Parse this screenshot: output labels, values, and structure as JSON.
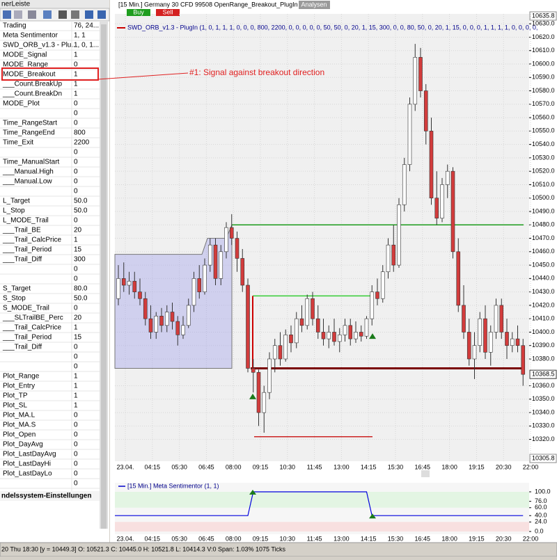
{
  "window": {
    "panel_title": "nerLeiste",
    "section": "ndelssystem-Einstellungen",
    "status": "20 Thu  18:30 [y = 10449.3]    O: 10521.3 C: 10445.0 H: 10521.8 L: 10414.3 V:0 Span: 1.03% 1075 Ticks",
    "params": [
      [
        "Trading",
        "76, 24..."
      ],
      [
        "Meta Sentimentor",
        "1, 1"
      ],
      [
        "SWD_ORB_v1.3 - Plu...",
        "1, 0, 1..."
      ],
      [
        "MODE_Signal",
        "1"
      ],
      [
        "MODE_Range",
        "0"
      ],
      [
        "MODE_Breakout",
        "1"
      ],
      [
        "___Count.BreakUp",
        "1"
      ],
      [
        "___Count.BreakDn",
        "1"
      ],
      [
        "MODE_Plot",
        "0"
      ],
      [
        null,
        "0"
      ],
      [
        "Time_RangeStart",
        "0"
      ],
      [
        "Time_RangeEnd",
        "800"
      ],
      [
        "Time_Exit",
        "2200"
      ],
      [
        null,
        "0"
      ],
      [
        "Time_ManualStart",
        "0"
      ],
      [
        "___Manual.High",
        "0"
      ],
      [
        "___Manual.Low",
        "0"
      ],
      [
        null,
        "0"
      ],
      [
        "L_Target",
        "50.0"
      ],
      [
        "L_Stop",
        "50.0"
      ],
      [
        "L_MODE_Trail",
        "0"
      ],
      [
        "___Trail_BE",
        "20"
      ],
      [
        "___Trail_CalcPrice",
        "1"
      ],
      [
        "___Trail_Period",
        "15"
      ],
      [
        "___Trail_Diff",
        "300"
      ],
      [
        null,
        "0"
      ],
      [
        null,
        "0"
      ],
      [
        "S_Target",
        "80.0"
      ],
      [
        "S_Stop",
        "50.0"
      ],
      [
        "S_MODE_Trail",
        "0"
      ],
      [
        "___SLTrailBE_Perc",
        "20"
      ],
      [
        "___Trail_CalcPrice",
        "1"
      ],
      [
        "___Trail_Period",
        "15"
      ],
      [
        "___Trail_Diff",
        "0"
      ],
      [
        null,
        "0"
      ],
      [
        null,
        "0"
      ],
      [
        "Plot_Range",
        "1"
      ],
      [
        "Plot_Entry",
        "1"
      ],
      [
        "Plot_TP",
        "1"
      ],
      [
        "Plot_SL",
        "1"
      ],
      [
        "Plot_MA.L",
        "0"
      ],
      [
        "Plot_MA.S",
        "0"
      ],
      [
        "Plot_Open",
        "0"
      ],
      [
        "Plot_DayAvg",
        "0"
      ],
      [
        "Plot_LastDayAvg",
        "0"
      ],
      [
        "Plot_LastDayHi",
        "0"
      ],
      [
        "Plot_LastDayLo",
        "0"
      ],
      [
        null,
        "0"
      ]
    ]
  },
  "chart": {
    "header": "[15 Min.] Germany 30 CFD   99508 OpenRange_Breakout_PlugIn",
    "analysen": "Analysen",
    "buy": "Buy",
    "sell": "Sell",
    "indicator": "SWD_ORB_v1.3 - PlugIn  (1, 0, 1, 1, 1, 0, 0, 0, 800, 2200, 0, 0, 0, 0, 0, 50, 50, 0, 20, 1, 15, 300, 0, 0, 80, 50, 0, 20, 1, 15, 0, 0, 0, 1, 1, 1, 1, 0, 0, 0, 0,",
    "annotation": "#1: Signal against breakout direction",
    "ylim": [
      10305.8,
      10635.8
    ],
    "last": 10368.5,
    "yticks": [
      {
        "value": 10320,
        "label": "10320.0"
      },
      {
        "value": 10330,
        "label": "10330.0"
      },
      {
        "value": 10340,
        "label": "10340.0"
      },
      {
        "value": 10350,
        "label": "10350.0"
      },
      {
        "value": 10360,
        "label": "10360.0"
      },
      {
        "value": 10380,
        "label": "10380.0"
      },
      {
        "value": 10390,
        "label": "10390.0"
      },
      {
        "value": 10400,
        "label": "10400.0"
      },
      {
        "value": 10410,
        "label": "10410.0"
      },
      {
        "value": 10420,
        "label": "10420.0"
      },
      {
        "value": 10430,
        "label": "10430.0"
      },
      {
        "value": 10440,
        "label": "10440.0"
      },
      {
        "value": 10450,
        "label": "10450.0"
      },
      {
        "value": 10460,
        "label": "10460.0"
      },
      {
        "value": 10470,
        "label": "10470.0"
      },
      {
        "value": 10480,
        "label": "10480.0"
      },
      {
        "value": 10490,
        "label": "10490.0"
      },
      {
        "value": 10500,
        "label": "10500.0"
      },
      {
        "value": 10510,
        "label": "10510.0"
      },
      {
        "value": 10520,
        "label": "10520.0"
      },
      {
        "value": 10530,
        "label": "10530.0"
      },
      {
        "value": 10540,
        "label": "10540.0"
      },
      {
        "value": 10550,
        "label": "10550.0"
      },
      {
        "value": 10560,
        "label": "10560.0"
      },
      {
        "value": 10570,
        "label": "10570.0"
      },
      {
        "value": 10580,
        "label": "10580.0"
      },
      {
        "value": 10590,
        "label": "10590.0"
      },
      {
        "value": 10600,
        "label": "10600.0"
      },
      {
        "value": 10610,
        "label": "10610.0"
      },
      {
        "value": 10620,
        "label": "10620.0"
      },
      {
        "value": 10630,
        "label": "10630.0"
      }
    ],
    "time_labels": [
      "23.04.",
      "04:15",
      "05:30",
      "06:45",
      "08:00",
      "09:15",
      "10:30",
      "11:45",
      "13:00",
      "14:15",
      "15:30",
      "16:45",
      "18:00",
      "19:15",
      "20:30",
      "22:00"
    ],
    "levels": [
      {
        "value": 10480,
        "color": "#1a9a1a"
      },
      {
        "value": 10427,
        "color": "#33cc33"
      },
      {
        "value": 10373,
        "color": "#7a0000"
      },
      {
        "value": 10322,
        "color": "#cc2222"
      }
    ],
    "range_box": [
      10458,
      10373
    ],
    "candles": [
      [
        10425,
        10450,
        10420,
        10440
      ],
      [
        10440,
        10452,
        10430,
        10435
      ],
      [
        10435,
        10445,
        10428,
        10438
      ],
      [
        10438,
        10445,
        10425,
        10430
      ],
      [
        10430,
        10440,
        10420,
        10425
      ],
      [
        10425,
        10430,
        10405,
        10410
      ],
      [
        10410,
        10420,
        10395,
        10400
      ],
      [
        10400,
        10415,
        10395,
        10412
      ],
      [
        10412,
        10418,
        10400,
        10405
      ],
      [
        10405,
        10420,
        10400,
        10415
      ],
      [
        10415,
        10422,
        10402,
        10408
      ],
      [
        10408,
        10412,
        10390,
        10398
      ],
      [
        10398,
        10412,
        10395,
        10405
      ],
      [
        10405,
        10425,
        10403,
        10420
      ],
      [
        10420,
        10445,
        10415,
        10440
      ],
      [
        10440,
        10450,
        10425,
        10430
      ],
      [
        10430,
        10455,
        10428,
        10450
      ],
      [
        10450,
        10470,
        10445,
        10465
      ],
      [
        10465,
        10470,
        10435,
        10440
      ],
      [
        10440,
        10465,
        10435,
        10460
      ],
      [
        10460,
        10482,
        10455,
        10478
      ],
      [
        10478,
        10488,
        10465,
        10470
      ],
      [
        10470,
        10475,
        10445,
        10455
      ],
      [
        10455,
        10462,
        10430,
        10435
      ],
      [
        10435,
        10440,
        10370,
        10373
      ],
      [
        10373,
        10380,
        10355,
        10370
      ],
      [
        10370,
        10372,
        10330,
        10340
      ],
      [
        10340,
        10360,
        10325,
        10355
      ],
      [
        10355,
        10385,
        10350,
        10380
      ],
      [
        10380,
        10395,
        10370,
        10390
      ],
      [
        10390,
        10400,
        10375,
        10380
      ],
      [
        10380,
        10402,
        10378,
        10398
      ],
      [
        10398,
        10405,
        10385,
        10392
      ],
      [
        10392,
        10415,
        10388,
        10410
      ],
      [
        10410,
        10420,
        10400,
        10405
      ],
      [
        10405,
        10428,
        10402,
        10425
      ],
      [
        10425,
        10430,
        10405,
        10410
      ],
      [
        10410,
        10420,
        10395,
        10400
      ],
      [
        10400,
        10410,
        10390,
        10395
      ],
      [
        10395,
        10405,
        10388,
        10400
      ],
      [
        10400,
        10410,
        10390,
        10393
      ],
      [
        10393,
        10403,
        10385,
        10398
      ],
      [
        10398,
        10410,
        10393,
        10405
      ],
      [
        10405,
        10410,
        10390,
        10395
      ],
      [
        10395,
        10408,
        10392,
        10400
      ],
      [
        10400,
        10405,
        10393,
        10397
      ],
      [
        10397,
        10412,
        10395,
        10410
      ],
      [
        10410,
        10435,
        10405,
        10430
      ],
      [
        10430,
        10440,
        10420,
        10425
      ],
      [
        10425,
        10450,
        10422,
        10445
      ],
      [
        10445,
        10470,
        10440,
        10465
      ],
      [
        10465,
        10480,
        10445,
        10450
      ],
      [
        10450,
        10500,
        10448,
        10495
      ],
      [
        10495,
        10530,
        10490,
        10525
      ],
      [
        10525,
        10575,
        10520,
        10570
      ],
      [
        10570,
        10615,
        10565,
        10605
      ],
      [
        10605,
        10612,
        10575,
        10580
      ],
      [
        10580,
        10585,
        10540,
        10550
      ],
      [
        10550,
        10560,
        10495,
        10500
      ],
      [
        10500,
        10520,
        10480,
        10485
      ],
      [
        10485,
        10515,
        10482,
        10510
      ],
      [
        10510,
        10525,
        10500,
        10520
      ],
      [
        10520,
        10523,
        10455,
        10460
      ],
      [
        10460,
        10470,
        10415,
        10420
      ],
      [
        10420,
        10435,
        10395,
        10400
      ],
      [
        10400,
        10410,
        10375,
        10380
      ],
      [
        10380,
        10400,
        10365,
        10390
      ],
      [
        10390,
        10415,
        10385,
        10410
      ],
      [
        10410,
        10420,
        10380,
        10385
      ],
      [
        10385,
        10405,
        10375,
        10400
      ],
      [
        10400,
        10425,
        10395,
        10420
      ],
      [
        10420,
        10425,
        10395,
        10400
      ],
      [
        10400,
        10410,
        10380,
        10390
      ],
      [
        10390,
        10400,
        10385,
        10395
      ],
      [
        10395,
        10405,
        10385,
        10390
      ],
      [
        10390,
        10395,
        10360,
        10368.5
      ]
    ],
    "sentimentor": {
      "title": "[15 Min.] Meta Sentimentor  (1, 1)",
      "ylim": [
        0,
        100
      ],
      "yticks": [
        {
          "value": 100,
          "label": "100.0"
        },
        {
          "value": 76,
          "label": "76.0"
        },
        {
          "value": 60,
          "label": "60.0"
        },
        {
          "value": 40,
          "label": "40.0"
        },
        {
          "value": 24,
          "label": "24.0"
        },
        {
          "value": 0,
          "label": "0.0"
        }
      ],
      "values": [
        40,
        40,
        40,
        40,
        40,
        40,
        40,
        40,
        40,
        40,
        40,
        40,
        40,
        40,
        40,
        40,
        40,
        40,
        40,
        40,
        40,
        40,
        40,
        40,
        40,
        100,
        100,
        100,
        100,
        100,
        100,
        100,
        100,
        100,
        100,
        100,
        100,
        100,
        100,
        100,
        100,
        100,
        100,
        100,
        100,
        100,
        100,
        40,
        40,
        40,
        40,
        40,
        40,
        40,
        40,
        40,
        40,
        40,
        40,
        40,
        40,
        40,
        40,
        40,
        40,
        40,
        40,
        40,
        40,
        40,
        40,
        40,
        40,
        40,
        40,
        40
      ]
    }
  }
}
